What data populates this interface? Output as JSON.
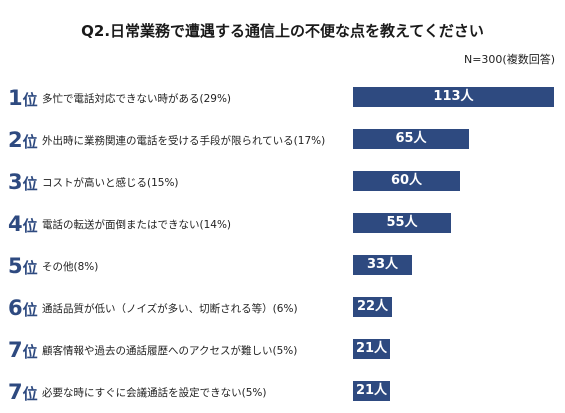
{
  "chart_data": {
    "type": "bar",
    "orientation": "horizontal",
    "title": "Q2.日常業務で遭遇する通信上の不便な点を教えてください",
    "note": "N=300(複数回答)",
    "rank_suffix": "位",
    "value_unit": "人",
    "bar_color": "#2e4a80",
    "rank_color": "#2e4a80",
    "items": [
      {
        "rank": "1",
        "label": "多忙で電話対応できない時がある(29%)",
        "value": 113,
        "value_label": "113人"
      },
      {
        "rank": "2",
        "label": "外出時に業務関連の電話を受ける手段が限られている(17%)",
        "value": 65,
        "value_label": "65人"
      },
      {
        "rank": "3",
        "label": "コストが高いと感じる(15%)",
        "value": 60,
        "value_label": "60人"
      },
      {
        "rank": "4",
        "label": "電話の転送が面倒またはできない(14%)",
        "value": 55,
        "value_label": "55人"
      },
      {
        "rank": "5",
        "label": "その他(8%)",
        "value": 33,
        "value_label": "33人"
      },
      {
        "rank": "6",
        "label": "通話品質が低い（ノイズが多い、切断される等）(6%)",
        "value": 22,
        "value_label": "22人"
      },
      {
        "rank": "7",
        "label": "顧客情報や過去の通話履歴へのアクセスが難しい(5%)",
        "value": 21,
        "value_label": "21人"
      },
      {
        "rank": "7",
        "label": "必要な時にすぐに会議通話を設定できない(5%)",
        "value": 21,
        "value_label": "21人"
      }
    ]
  }
}
